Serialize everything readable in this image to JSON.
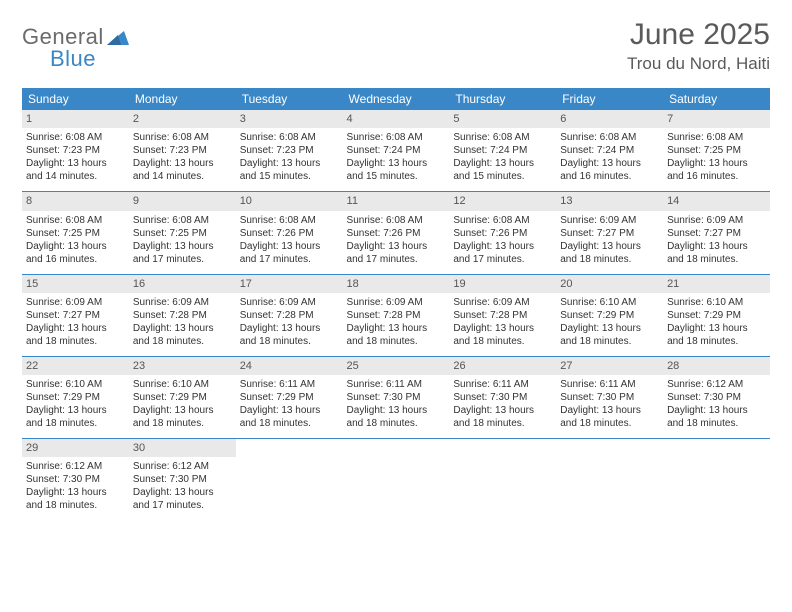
{
  "logo": {
    "word1": "General",
    "word2": "Blue"
  },
  "title": "June 2025",
  "location": "Trou du Nord, Haiti",
  "colors": {
    "header_bg": "#3a87c7",
    "header_text": "#ffffff",
    "daynum_bg": "#e9e9e9",
    "body_text": "#333333",
    "logo_gray": "#6b6b6b",
    "logo_blue": "#3a87c7",
    "row_border": "#3a87c7"
  },
  "weekdays": [
    "Sunday",
    "Monday",
    "Tuesday",
    "Wednesday",
    "Thursday",
    "Friday",
    "Saturday"
  ],
  "weeks": [
    [
      {
        "day": "1",
        "sunrise": "6:08 AM",
        "sunset": "7:23 PM",
        "daylight": "13 hours and 14 minutes."
      },
      {
        "day": "2",
        "sunrise": "6:08 AM",
        "sunset": "7:23 PM",
        "daylight": "13 hours and 14 minutes."
      },
      {
        "day": "3",
        "sunrise": "6:08 AM",
        "sunset": "7:23 PM",
        "daylight": "13 hours and 15 minutes."
      },
      {
        "day": "4",
        "sunrise": "6:08 AM",
        "sunset": "7:24 PM",
        "daylight": "13 hours and 15 minutes."
      },
      {
        "day": "5",
        "sunrise": "6:08 AM",
        "sunset": "7:24 PM",
        "daylight": "13 hours and 15 minutes."
      },
      {
        "day": "6",
        "sunrise": "6:08 AM",
        "sunset": "7:24 PM",
        "daylight": "13 hours and 16 minutes."
      },
      {
        "day": "7",
        "sunrise": "6:08 AM",
        "sunset": "7:25 PM",
        "daylight": "13 hours and 16 minutes."
      }
    ],
    [
      {
        "day": "8",
        "sunrise": "6:08 AM",
        "sunset": "7:25 PM",
        "daylight": "13 hours and 16 minutes."
      },
      {
        "day": "9",
        "sunrise": "6:08 AM",
        "sunset": "7:25 PM",
        "daylight": "13 hours and 17 minutes."
      },
      {
        "day": "10",
        "sunrise": "6:08 AM",
        "sunset": "7:26 PM",
        "daylight": "13 hours and 17 minutes."
      },
      {
        "day": "11",
        "sunrise": "6:08 AM",
        "sunset": "7:26 PM",
        "daylight": "13 hours and 17 minutes."
      },
      {
        "day": "12",
        "sunrise": "6:08 AM",
        "sunset": "7:26 PM",
        "daylight": "13 hours and 17 minutes."
      },
      {
        "day": "13",
        "sunrise": "6:09 AM",
        "sunset": "7:27 PM",
        "daylight": "13 hours and 18 minutes."
      },
      {
        "day": "14",
        "sunrise": "6:09 AM",
        "sunset": "7:27 PM",
        "daylight": "13 hours and 18 minutes."
      }
    ],
    [
      {
        "day": "15",
        "sunrise": "6:09 AM",
        "sunset": "7:27 PM",
        "daylight": "13 hours and 18 minutes."
      },
      {
        "day": "16",
        "sunrise": "6:09 AM",
        "sunset": "7:28 PM",
        "daylight": "13 hours and 18 minutes."
      },
      {
        "day": "17",
        "sunrise": "6:09 AM",
        "sunset": "7:28 PM",
        "daylight": "13 hours and 18 minutes."
      },
      {
        "day": "18",
        "sunrise": "6:09 AM",
        "sunset": "7:28 PM",
        "daylight": "13 hours and 18 minutes."
      },
      {
        "day": "19",
        "sunrise": "6:09 AM",
        "sunset": "7:28 PM",
        "daylight": "13 hours and 18 minutes."
      },
      {
        "day": "20",
        "sunrise": "6:10 AM",
        "sunset": "7:29 PM",
        "daylight": "13 hours and 18 minutes."
      },
      {
        "day": "21",
        "sunrise": "6:10 AM",
        "sunset": "7:29 PM",
        "daylight": "13 hours and 18 minutes."
      }
    ],
    [
      {
        "day": "22",
        "sunrise": "6:10 AM",
        "sunset": "7:29 PM",
        "daylight": "13 hours and 18 minutes."
      },
      {
        "day": "23",
        "sunrise": "6:10 AM",
        "sunset": "7:29 PM",
        "daylight": "13 hours and 18 minutes."
      },
      {
        "day": "24",
        "sunrise": "6:11 AM",
        "sunset": "7:29 PM",
        "daylight": "13 hours and 18 minutes."
      },
      {
        "day": "25",
        "sunrise": "6:11 AM",
        "sunset": "7:30 PM",
        "daylight": "13 hours and 18 minutes."
      },
      {
        "day": "26",
        "sunrise": "6:11 AM",
        "sunset": "7:30 PM",
        "daylight": "13 hours and 18 minutes."
      },
      {
        "day": "27",
        "sunrise": "6:11 AM",
        "sunset": "7:30 PM",
        "daylight": "13 hours and 18 minutes."
      },
      {
        "day": "28",
        "sunrise": "6:12 AM",
        "sunset": "7:30 PM",
        "daylight": "13 hours and 18 minutes."
      }
    ],
    [
      {
        "day": "29",
        "sunrise": "6:12 AM",
        "sunset": "7:30 PM",
        "daylight": "13 hours and 18 minutes."
      },
      {
        "day": "30",
        "sunrise": "6:12 AM",
        "sunset": "7:30 PM",
        "daylight": "13 hours and 17 minutes."
      },
      null,
      null,
      null,
      null,
      null
    ]
  ],
  "labels": {
    "sunrise": "Sunrise:",
    "sunset": "Sunset:",
    "daylight": "Daylight:"
  }
}
